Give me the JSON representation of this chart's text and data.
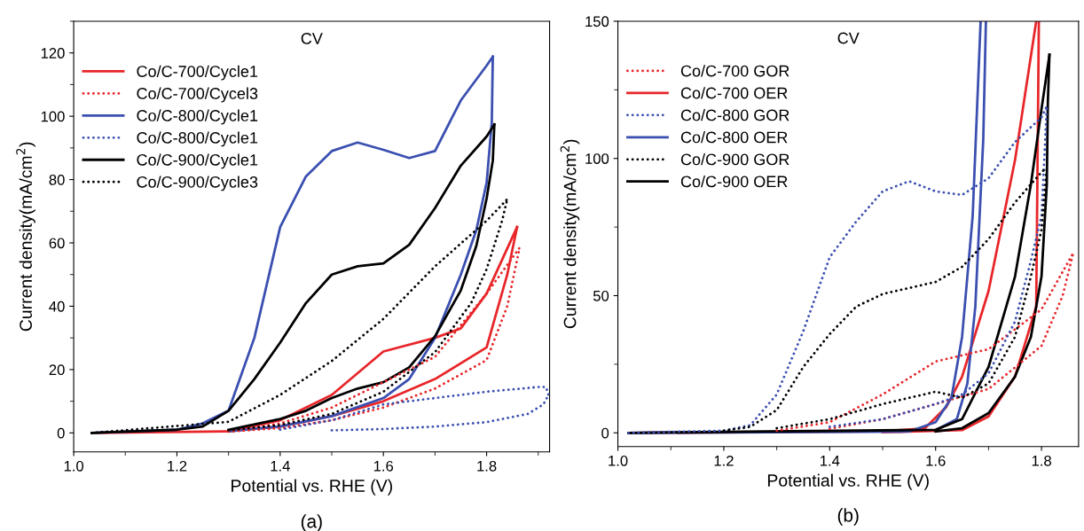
{
  "chart_data": [
    {
      "type": "line",
      "title": "CV",
      "xlabel": "Potential vs. RHE (V)",
      "ylabel": "Current density(mA/cm$^{2}$)",
      "annotations": [
        "(a)"
      ],
      "xlim": [
        1.0,
        1.922
      ],
      "xticks": [
        {
          "value": 1.0,
          "label": "1.0"
        },
        1.2,
        1.4,
        1.6,
        1.8
      ],
      "ylim": [
        -6,
        130
      ],
      "yticks": [
        0,
        20,
        40,
        60,
        80,
        100,
        120
      ],
      "grid": false,
      "legend": "top left",
      "series": [
        {
          "name": "Co/C-700/Cycle1",
          "color": "#e8262a",
          "line_style": "solid",
          "x": [
            1.035,
            1.3,
            1.4,
            1.5,
            1.6,
            1.7,
            1.75,
            1.8,
            1.859
          ],
          "values": [
            0,
            0.5,
            4,
            12,
            25.7,
            30,
            33,
            44,
            65
          ]
        },
        {
          "color": "#e8262a",
          "line_style": "solid",
          "x": [
            1.3,
            1.4,
            1.5,
            1.6,
            1.7,
            1.8,
            1.84,
            1.859
          ],
          "values": [
            0.5,
            2,
            5.3,
            10,
            17,
            27,
            50,
            65
          ]
        },
        {
          "name": "Co/C-700/Cycel3",
          "color": "#e8262a",
          "line_style": "dotted",
          "x": [
            1.3,
            1.4,
            1.5,
            1.6,
            1.7,
            1.8,
            1.864
          ],
          "values": [
            0.4,
            3,
            8,
            16,
            24,
            44,
            58.5
          ]
        },
        {
          "color": "#e8262a",
          "line_style": "dotted",
          "x": [
            1.3,
            1.4,
            1.5,
            1.6,
            1.7,
            1.8,
            1.84,
            1.864
          ],
          "values": [
            0.4,
            1.5,
            4,
            8,
            14,
            23,
            40,
            58.5
          ]
        },
        {
          "name": "Co/C-800/Cycle1",
          "color": "#3a4fb0",
          "line_style": "solid",
          "x": [
            1.035,
            1.2,
            1.25,
            1.3,
            1.35,
            1.4,
            1.45,
            1.5,
            1.55,
            1.6,
            1.65,
            1.7,
            1.75,
            1.8,
            1.812
          ],
          "values": [
            0,
            1,
            3,
            7,
            30,
            65,
            81,
            89,
            91.7,
            89.4,
            86.8,
            89,
            105,
            116,
            118.8
          ]
        },
        {
          "color": "#3a4fb0",
          "line_style": "solid",
          "x": [
            1.3,
            1.4,
            1.5,
            1.6,
            1.65,
            1.7,
            1.75,
            1.78,
            1.8,
            1.81,
            1.812
          ],
          "values": [
            0.5,
            2,
            5.3,
            11,
            17,
            30,
            50,
            64,
            79,
            98,
            118.8
          ]
        },
        {
          "name": "Co/C-800/Cycle1",
          "color": "#3a4fb0",
          "line_style": "dotted",
          "x": [
            1.4,
            1.5,
            1.6,
            1.7,
            1.8,
            1.9,
            1.915,
            1.92
          ],
          "values": [
            1,
            4,
            9,
            11,
            13,
            14.5,
            14.5,
            12
          ]
        },
        {
          "color": "#3a4fb0",
          "line_style": "dotted",
          "x": [
            1.5,
            1.6,
            1.7,
            1.8,
            1.88,
            1.91,
            1.92
          ],
          "values": [
            0.8,
            1.2,
            2,
            3.4,
            6,
            9,
            12
          ]
        },
        {
          "name": "Co/C-900/Cycle1",
          "color": "#000000",
          "line_style": "solid",
          "x": [
            1.035,
            1.2,
            1.25,
            1.3,
            1.35,
            1.4,
            1.45,
            1.5,
            1.55,
            1.6,
            1.65,
            1.7,
            1.75,
            1.8,
            1.815
          ],
          "values": [
            0,
            1,
            2,
            7,
            17,
            28.5,
            41,
            50,
            52.6,
            53.5,
            59.4,
            71,
            84.4,
            93.6,
            97.4
          ]
        },
        {
          "color": "#000000",
          "line_style": "solid",
          "x": [
            1.3,
            1.4,
            1.45,
            1.5,
            1.55,
            1.6,
            1.65,
            1.7,
            1.75,
            1.78,
            1.8,
            1.812,
            1.815
          ],
          "values": [
            1,
            4.4,
            7,
            11,
            14,
            16,
            20.7,
            30.5,
            45,
            59,
            74,
            86,
            97.4
          ]
        },
        {
          "name": "Co/C-900/Cycle3",
          "color": "#000000",
          "line_style": "dotted",
          "x": [
            1.035,
            1.3,
            1.4,
            1.5,
            1.6,
            1.7,
            1.8,
            1.84
          ],
          "values": [
            0,
            3.5,
            12,
            22.7,
            36,
            52.6,
            67,
            73.8
          ]
        },
        {
          "color": "#000000",
          "line_style": "dotted",
          "x": [
            1.3,
            1.4,
            1.5,
            1.6,
            1.7,
            1.77,
            1.8,
            1.83,
            1.84
          ],
          "values": [
            0.8,
            2.5,
            6,
            13,
            25.5,
            41,
            51.7,
            67,
            73.8
          ]
        }
      ]
    },
    {
      "type": "line",
      "title": "CV",
      "xlabel": "Potential vs. RHE (V)",
      "ylabel": "Current density(mA/cm$^{2}$)",
      "annotations": [
        "(b)"
      ],
      "xlim": [
        1.0,
        1.87
      ],
      "xticks": [
        {
          "value": 1.0,
          "label": "1.0"
        },
        1.2,
        1.4,
        1.6,
        1.8
      ],
      "ylim": [
        -5,
        150
      ],
      "yticks": [
        0,
        50,
        100,
        150
      ],
      "grid": false,
      "legend": "top left",
      "series": [
        {
          "name": "Co/C-700 GOR",
          "color": "#e8262a",
          "line_style": "dotted",
          "x": [
            1.3,
            1.4,
            1.5,
            1.6,
            1.7,
            1.8,
            1.86
          ],
          "values": [
            0.8,
            3.9,
            14,
            26,
            30.5,
            45,
            65.6
          ]
        },
        {
          "color": "#e8262a",
          "line_style": "dotted",
          "x": [
            1.4,
            1.5,
            1.6,
            1.7,
            1.8,
            1.84,
            1.86
          ],
          "values": [
            1.5,
            5,
            10.5,
            16,
            31.7,
            50,
            65.6
          ]
        },
        {
          "name": "Co/C-700 OER",
          "color": "#e8262a",
          "line_style": "solid",
          "x": [
            1.02,
            1.5,
            1.58,
            1.62,
            1.65,
            1.7,
            1.75,
            1.79
          ],
          "values": [
            0,
            0.5,
            1.7,
            9.4,
            20.5,
            51.7,
            99.4,
            150
          ]
        },
        {
          "color": "#e8262a",
          "line_style": "solid",
          "x": [
            1.5,
            1.65,
            1.7,
            1.75,
            1.79,
            1.795
          ],
          "values": [
            0.2,
            1,
            6,
            20.5,
            46,
            150
          ]
        },
        {
          "name": "Co/C-800 GOR",
          "color": "#3a4fb0",
          "line_style": "dotted",
          "x": [
            1.02,
            1.2,
            1.25,
            1.3,
            1.35,
            1.4,
            1.45,
            1.5,
            1.55,
            1.6,
            1.65,
            1.7,
            1.75,
            1.8,
            1.81
          ],
          "values": [
            0,
            0.8,
            2.8,
            14,
            37,
            64,
            77,
            88,
            91.7,
            88,
            86.7,
            92.8,
            106,
            115,
            119
          ]
        },
        {
          "color": "#3a4fb0",
          "line_style": "dotted",
          "x": [
            1.4,
            1.5,
            1.6,
            1.65,
            1.7,
            1.75,
            1.78,
            1.8,
            1.81
          ],
          "values": [
            2.2,
            5,
            10.5,
            14,
            21.7,
            40.6,
            62.8,
            79,
            119
          ]
        },
        {
          "name": "Co/C-800 OER",
          "color": "#3a4fb0",
          "line_style": "solid",
          "x": [
            1.02,
            1.55,
            1.6,
            1.63,
            1.65,
            1.67,
            1.685
          ],
          "values": [
            0,
            0.5,
            3.9,
            12.8,
            35,
            79,
            150
          ]
        },
        {
          "color": "#3a4fb0",
          "line_style": "solid",
          "x": [
            1.6,
            1.64,
            1.66,
            1.675,
            1.69,
            1.695
          ],
          "values": [
            1,
            5,
            18,
            46,
            107,
            150
          ]
        },
        {
          "name": "Co/C-900 GOR",
          "color": "#000000",
          "line_style": "dotted",
          "x": [
            1.2,
            1.25,
            1.3,
            1.35,
            1.4,
            1.45,
            1.5,
            1.55,
            1.6,
            1.65,
            1.7,
            1.75,
            1.8,
            1.81
          ],
          "values": [
            0.8,
            2.2,
            8.3,
            24,
            36,
            46,
            50.6,
            52.8,
            55,
            60.5,
            70.6,
            84,
            95,
            96.7
          ]
        },
        {
          "color": "#000000",
          "line_style": "dotted",
          "x": [
            1.3,
            1.4,
            1.5,
            1.6,
            1.65,
            1.7,
            1.75,
            1.78,
            1.8,
            1.81
          ],
          "values": [
            1.7,
            5,
            10.5,
            15,
            12.8,
            18,
            35,
            57,
            74,
            96.7
          ]
        },
        {
          "name": "Co/C-900 OER",
          "color": "#000000",
          "line_style": "solid",
          "x": [
            1.02,
            1.6,
            1.65,
            1.7,
            1.75,
            1.78,
            1.8,
            1.815
          ],
          "values": [
            0,
            1.1,
            5,
            24,
            57,
            90.6,
            118,
            137.8
          ]
        },
        {
          "color": "#000000",
          "line_style": "solid",
          "x": [
            1.6,
            1.65,
            1.7,
            1.75,
            1.78,
            1.8,
            1.81,
            1.812,
            1.815
          ],
          "values": [
            0.5,
            1.7,
            7.2,
            20.5,
            35,
            57,
            90.6,
            120.6,
            137.8
          ]
        }
      ]
    }
  ]
}
